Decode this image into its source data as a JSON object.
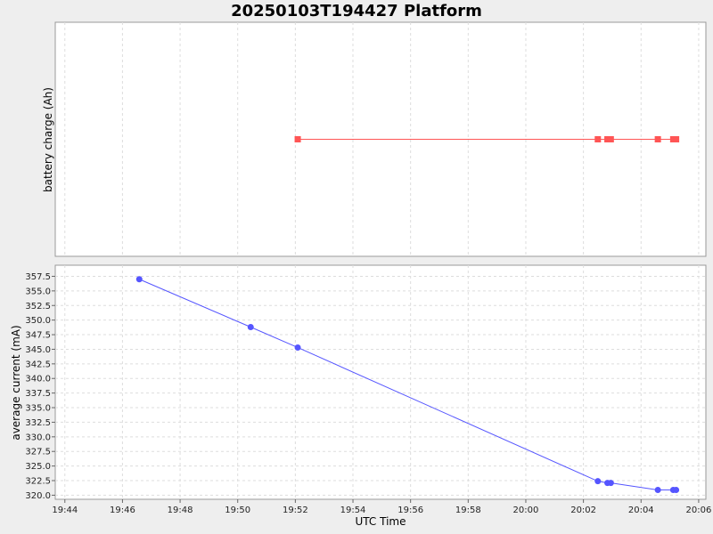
{
  "chart_data": {
    "title": "20250103T194427 Platform",
    "xlabel": "UTC Time",
    "x_ticks": [
      "19:44",
      "19:46",
      "19:48",
      "19:50",
      "19:52",
      "19:54",
      "19:56",
      "19:58",
      "20:00",
      "20:02",
      "20:04",
      "20:06"
    ],
    "x_range": [
      "19:43:40",
      "20:06:15"
    ],
    "grid": true,
    "panels": [
      {
        "type": "line",
        "ylabel": "battery charge (Ah)",
        "y_ticks": [],
        "colors": {
          "line": "#ff5555"
        },
        "marker": "square",
        "series": [
          {
            "x": [
              "19:52:05",
              "20:02:30",
              "20:02:50",
              "20:02:57",
              "20:04:35",
              "20:05:07",
              "20:05:13"
            ],
            "y": [
              1,
              1,
              1,
              1,
              1,
              1,
              1
            ]
          }
        ]
      },
      {
        "type": "line",
        "ylabel": "average current (mA)",
        "ylim": [
          319.3,
          359.4
        ],
        "y_ticks": [
          "320.0",
          "322.5",
          "325.0",
          "327.5",
          "330.0",
          "332.5",
          "335.0",
          "337.5",
          "340.0",
          "342.5",
          "345.0",
          "347.5",
          "350.0",
          "352.5",
          "355.0",
          "357.5"
        ],
        "colors": {
          "line": "#5555ff"
        },
        "marker": "circle",
        "series": [
          {
            "x": [
              "19:46:35",
              "19:50:27",
              "19:52:05",
              "20:02:30",
              "20:02:50",
              "20:02:57",
              "20:04:35",
              "20:05:07",
              "20:05:13"
            ],
            "y": [
              357.0,
              348.8,
              345.3,
              322.4,
              322.1,
              322.1,
              320.9,
              320.9,
              320.9
            ]
          }
        ]
      }
    ]
  }
}
